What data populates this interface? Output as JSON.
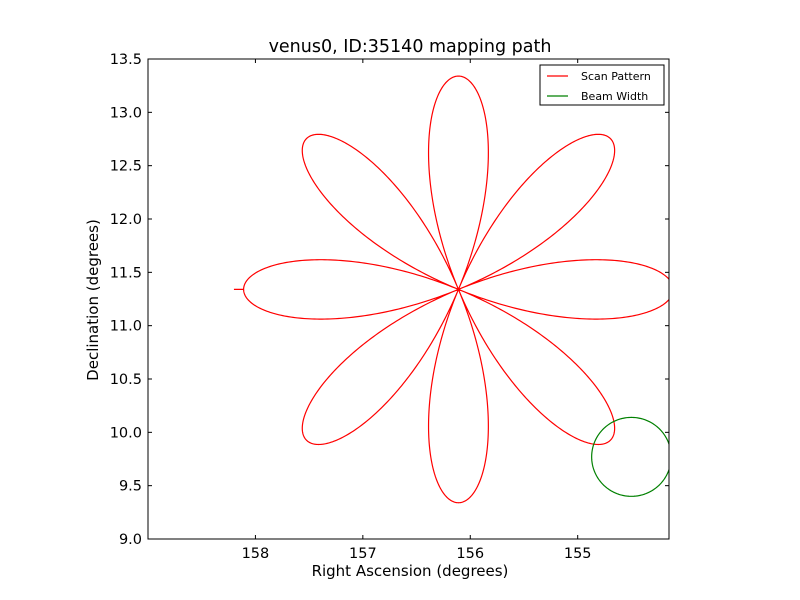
{
  "chart_data": {
    "type": "line",
    "title": "venus0, ID:35140 mapping path",
    "xlabel": "Right Ascension (degrees)",
    "ylabel": "Declination (degrees)",
    "xlim": [
      159.0,
      154.15
    ],
    "ylim": [
      9.0,
      13.5
    ],
    "x_inverted": true,
    "xticks": [
      158,
      157,
      156,
      155
    ],
    "xtick_labels": [
      "158",
      "157",
      "156",
      "155"
    ],
    "yticks": [
      9.0,
      9.5,
      10.0,
      10.5,
      11.0,
      11.5,
      12.0,
      12.5,
      13.0,
      13.5
    ],
    "ytick_labels": [
      "9.0",
      "9.5",
      "10.0",
      "10.5",
      "11.0",
      "11.5",
      "12.0",
      "12.5",
      "13.0",
      "13.5"
    ],
    "grid": false,
    "legend_position": "top-right",
    "series": [
      {
        "name": "Scan Pattern",
        "color": "#ff0000",
        "kind": "rose",
        "center": [
          156.11,
          11.34
        ],
        "petals": 8,
        "radius_ra": 2.0,
        "radius_dec": 2.0,
        "start_point": [
          158.2,
          11.34
        ]
      },
      {
        "name": "Beam Width",
        "color": "#008000",
        "kind": "circle",
        "center": [
          154.5,
          9.77
        ],
        "radius_ra": 0.37,
        "radius_dec": 0.37
      }
    ]
  }
}
